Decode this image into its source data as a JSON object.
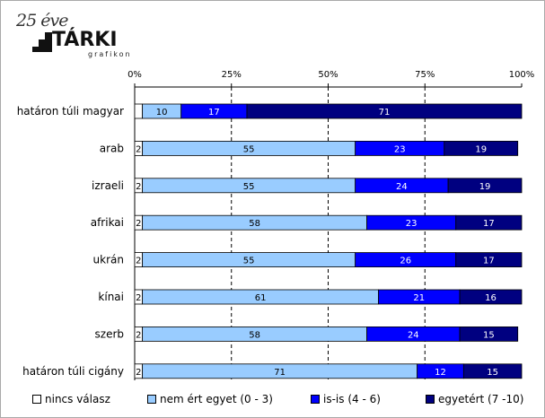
{
  "logo": {
    "year": "25 éve",
    "name": "TÁRKI",
    "sub": "grafikon"
  },
  "chart_data": {
    "type": "bar",
    "orientation": "horizontal",
    "stacked": true,
    "title": "",
    "xlabel": "",
    "ylabel": "",
    "xlim": [
      0,
      100
    ],
    "ticks": [
      "0%",
      "25%",
      "50%",
      "75%",
      "100%"
    ],
    "tick_values": [
      0,
      25,
      50,
      75,
      100
    ],
    "grid": "dashed vertical at 25/50/75",
    "legend": "bottom",
    "categories": [
      "határon túli magyar",
      "arab",
      "izraeli",
      "afrikai",
      "ukrán",
      "kínai",
      "szerb",
      "határon túli cigány"
    ],
    "series": [
      {
        "name": "nincs válasz",
        "color": "#ffffff",
        "values": [
          2,
          2,
          2,
          2,
          2,
          2,
          2,
          2
        ],
        "labels": [
          "",
          "2",
          "2",
          "2",
          "2",
          "2",
          "2",
          "2"
        ]
      },
      {
        "name": "nem ért egyet (0 - 3)",
        "color": "#99ccff",
        "values": [
          10,
          55,
          55,
          58,
          55,
          61,
          58,
          71
        ],
        "labels": [
          "10",
          "55",
          "55",
          "58",
          "55",
          "61",
          "58",
          "71"
        ]
      },
      {
        "name": "is-is (4 - 6)",
        "color": "#0000ff",
        "values": [
          17,
          23,
          24,
          23,
          26,
          21,
          24,
          12
        ],
        "labels": [
          "17",
          "23",
          "24",
          "23",
          "26",
          "21",
          "24",
          "12"
        ]
      },
      {
        "name": "egyetért (7 -10)",
        "color": "#000080",
        "values": [
          71,
          19,
          19,
          17,
          17,
          16,
          15,
          15
        ],
        "labels": [
          "71",
          "19",
          "19",
          "17",
          "17",
          "16",
          "15",
          "15"
        ]
      }
    ]
  }
}
